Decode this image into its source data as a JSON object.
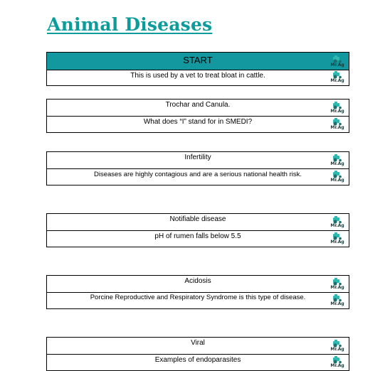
{
  "title": "Animal Diseases",
  "logo_text": "Mr.Ag",
  "accent": "#12989e",
  "cards": [
    {
      "rows": [
        "START",
        "This is used by a vet to treat bloat in cattle."
      ]
    },
    {
      "rows": [
        "Trochar and Canula.",
        "What does “I” stand for in SMEDI?"
      ]
    },
    {
      "rows": [
        "Infertility",
        "Diseases are highly contagious and are a serious national health risk."
      ]
    },
    {
      "rows": [
        "Notifiable disease",
        "pH of rumen falls below 5.5"
      ]
    },
    {
      "rows": [
        "Acidosis",
        "Porcine Reproductive and Respiratory Syndrome is this type of disease."
      ]
    },
    {
      "rows": [
        "Viral",
        "Examples of endoparasites"
      ]
    }
  ]
}
